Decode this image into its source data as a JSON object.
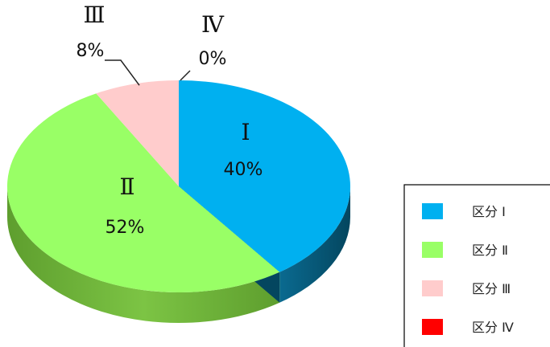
{
  "chart_data": {
    "type": "pie",
    "title": "",
    "series": [
      {
        "name": "",
        "slices": [
          {
            "label": "Ⅰ",
            "value": 40,
            "value_label": "40%",
            "legend": "区分 Ⅰ",
            "color": "#00B0F0"
          },
          {
            "label": "Ⅱ",
            "value": 52,
            "value_label": "52%",
            "legend": "区分 Ⅱ",
            "color": "#99FF66"
          },
          {
            "label": "Ⅲ",
            "value": 8,
            "value_label": "8%",
            "legend": "区分 Ⅲ",
            "color": "#FFCCCC"
          },
          {
            "label": "Ⅳ",
            "value": 0,
            "value_label": "0%",
            "legend": "区分 Ⅳ",
            "color": "#FF0000"
          }
        ]
      }
    ],
    "legend_position": "bottom-right",
    "style": "3d"
  }
}
